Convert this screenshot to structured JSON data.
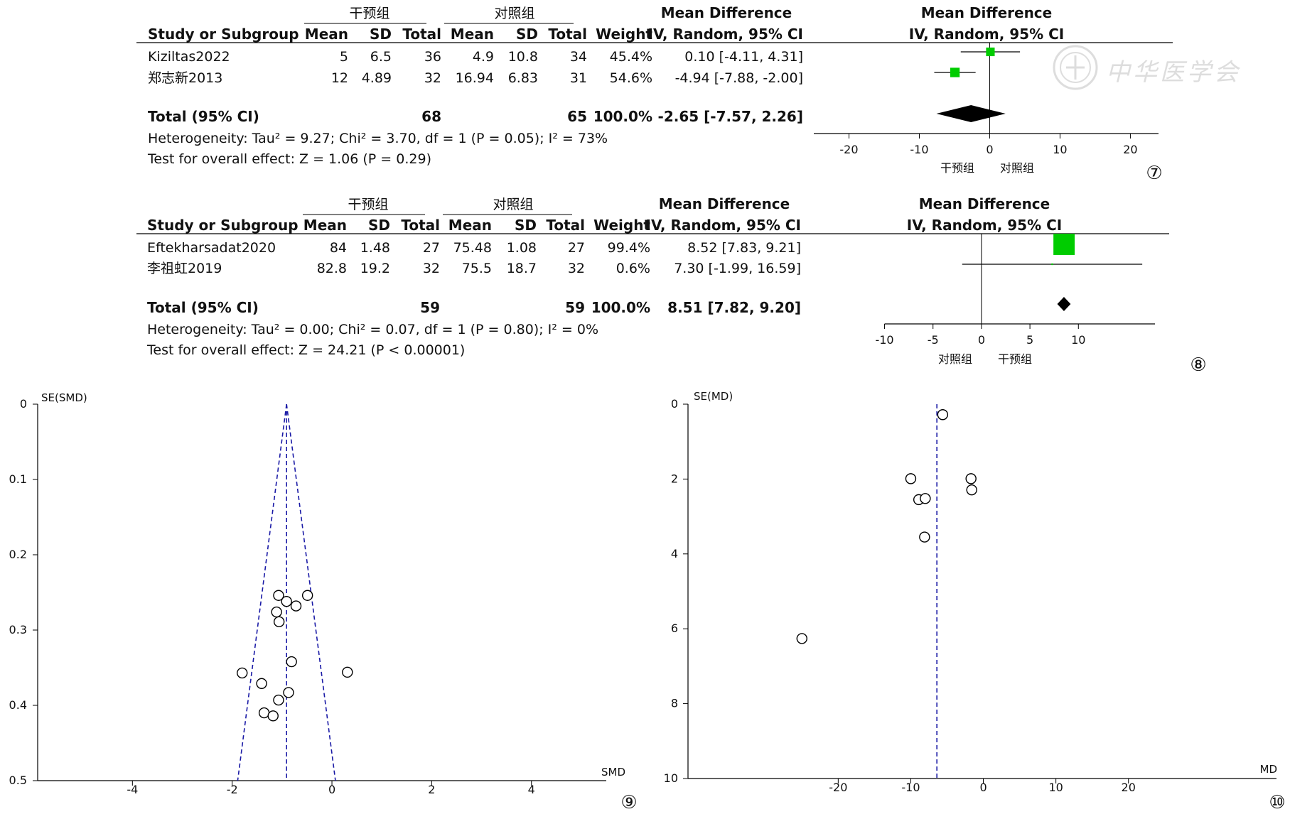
{
  "chart_data": [
    {
      "type": "forest",
      "panel": "⑦",
      "group_headers": [
        "干预组",
        "对照组"
      ],
      "columns": [
        "Study or Subgroup",
        "Mean",
        "SD",
        "Total",
        "Mean",
        "SD",
        "Total",
        "Weight",
        "Mean Difference",
        "IV, Random, 95% CI"
      ],
      "plot_header": [
        "Mean Difference",
        "IV, Random, 95% CI"
      ],
      "studies": [
        {
          "name": "Kiziltas2022",
          "mean1": "5",
          "sd1": "6.5",
          "total1": "36",
          "mean2": "4.9",
          "sd2": "10.8",
          "total2": "34",
          "weight": "45.4%",
          "ci_text": "0.10 [-4.11, 4.31]",
          "est": 0.1,
          "lo": -4.11,
          "hi": 4.31,
          "w": 45.4
        },
        {
          "name": "郑志新2013",
          "mean1": "12",
          "sd1": "4.89",
          "total1": "32",
          "mean2": "16.94",
          "sd2": "6.83",
          "total2": "31",
          "weight": "54.6%",
          "ci_text": "-4.94 [-7.88, -2.00]",
          "est": -4.94,
          "lo": -7.88,
          "hi": -2.0,
          "w": 54.6
        }
      ],
      "total": {
        "label": "Total (95% CI)",
        "total1": "68",
        "total2": "65",
        "weight": "100.0%",
        "ci_text": "-2.65 [-7.57, 2.26]",
        "est": -2.65,
        "lo": -7.57,
        "hi": 2.26
      },
      "heterogeneity": "Heterogeneity: Tau² = 9.27; Chi² = 3.70, df = 1 (P = 0.05); I² = 73%",
      "overall_effect": "Test for overall effect: Z = 1.06 (P = 0.29)",
      "xlim": [
        -25,
        24
      ],
      "ticks": [
        -20,
        -10,
        0,
        10,
        20
      ],
      "axis_labels": [
        "干预组",
        "对照组"
      ],
      "marker_color": "#00cc00"
    },
    {
      "type": "forest",
      "panel": "⑧",
      "group_headers": [
        "干预组",
        "对照组"
      ],
      "columns": [
        "Study or Subgroup",
        "Mean",
        "SD",
        "Total",
        "Mean",
        "SD",
        "Total",
        "Weight",
        "Mean Difference",
        "IV, Random, 95% CI"
      ],
      "plot_header": [
        "Mean Difference",
        "IV, Random, 95% CI"
      ],
      "studies": [
        {
          "name": "Eftekharsadat2020",
          "mean1": "84",
          "sd1": "1.48",
          "total1": "27",
          "mean2": "75.48",
          "sd2": "1.08",
          "total2": "27",
          "weight": "99.4%",
          "ci_text": "8.52 [7.83, 9.21]",
          "est": 8.52,
          "lo": 7.83,
          "hi": 9.21,
          "w": 99.4
        },
        {
          "name": "李祖虹2019",
          "mean1": "82.8",
          "sd1": "19.2",
          "total1": "32",
          "mean2": "75.5",
          "sd2": "18.7",
          "total2": "32",
          "weight": "0.6%",
          "ci_text": "7.30 [-1.99, 16.59]",
          "est": 7.3,
          "lo": -1.99,
          "hi": 16.59,
          "w": 0.6
        }
      ],
      "total": {
        "label": "Total (95% CI)",
        "total1": "59",
        "total2": "59",
        "weight": "100.0%",
        "ci_text": "8.51 [7.82, 9.20]",
        "est": 8.51,
        "lo": 7.82,
        "hi": 9.2
      },
      "heterogeneity": "Heterogeneity: Tau² = 0.00; Chi² = 0.07, df = 1 (P = 0.80); I² = 0%",
      "overall_effect": "Test for overall effect: Z = 24.21 (P < 0.00001)",
      "xlim": [
        -17.3,
        17.9
      ],
      "ticks": [
        -10,
        -5,
        0,
        5,
        10
      ],
      "axis_labels": [
        "对照组",
        "干预组"
      ],
      "marker_color": "#00cc00"
    },
    {
      "type": "scatter",
      "panel": "⑨",
      "xlabel": "SMD",
      "ylabel": "SE(SMD)",
      "x_ticks": [
        -4,
        -2,
        0,
        2,
        4
      ],
      "y_ticks": [
        0,
        0.1,
        0.2,
        0.3,
        0.4,
        0.5
      ],
      "xlim": [
        -5.9,
        5.5
      ],
      "ylim": [
        0,
        0.5
      ],
      "y_inverted": true,
      "pooled_estimate": -0.91,
      "points": [
        {
          "x": -1.07,
          "y": 0.254
        },
        {
          "x": -0.91,
          "y": 0.262
        },
        {
          "x": -0.49,
          "y": 0.254
        },
        {
          "x": -0.72,
          "y": 0.268
        },
        {
          "x": -1.11,
          "y": 0.276
        },
        {
          "x": -1.06,
          "y": 0.289
        },
        {
          "x": -0.81,
          "y": 0.342
        },
        {
          "x": 0.31,
          "y": 0.356
        },
        {
          "x": -1.8,
          "y": 0.357
        },
        {
          "x": -1.41,
          "y": 0.371
        },
        {
          "x": -0.87,
          "y": 0.383
        },
        {
          "x": -1.07,
          "y": 0.393
        },
        {
          "x": -1.36,
          "y": 0.41
        },
        {
          "x": -1.18,
          "y": 0.414
        }
      ]
    },
    {
      "type": "scatter",
      "panel": "⑩",
      "xlabel": "MD",
      "ylabel": "SE(MD)",
      "x_ticks": [
        -20,
        -10,
        0,
        10,
        20
      ],
      "y_ticks": [
        0,
        2,
        4,
        6,
        8,
        10
      ],
      "xlim": [
        -40.7,
        40.4
      ],
      "ylim": [
        0,
        10
      ],
      "y_inverted": true,
      "pooled_estimate": -6.4,
      "points": [
        {
          "x": -5.6,
          "y": 0.28
        },
        {
          "x": -10.0,
          "y": 1.99
        },
        {
          "x": -1.7,
          "y": 1.99
        },
        {
          "x": -1.6,
          "y": 2.29
        },
        {
          "x": -8.9,
          "y": 2.55
        },
        {
          "x": -8.0,
          "y": 2.52
        },
        {
          "x": -8.1,
          "y": 3.55
        },
        {
          "x": -25.0,
          "y": 6.26
        }
      ]
    }
  ],
  "watermark_text": "中华医学会"
}
